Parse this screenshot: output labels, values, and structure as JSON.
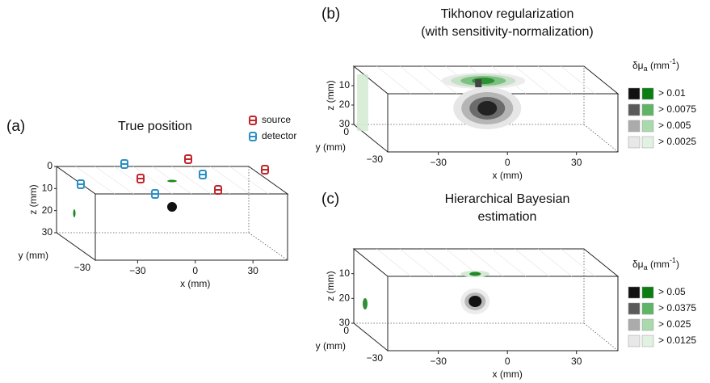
{
  "panels": [
    {
      "label": "(a)",
      "title": [
        "True position"
      ],
      "z_label": "z (mm)",
      "z_ticks": [
        "0",
        "10",
        "20",
        "30"
      ],
      "y_label": "y (mm)",
      "y_ticks": [
        "−30"
      ],
      "x_label": "x (mm)",
      "x_ticks": [
        "−30",
        "0",
        "30"
      ],
      "legend": [
        "source",
        "detector"
      ]
    },
    {
      "label": "(b)",
      "title": [
        "Tikhonov regularization",
        "(with sensitivity-normalization)"
      ],
      "z_label": "z (mm)",
      "z_ticks": [
        "10",
        "20",
        "30"
      ],
      "y_label": "y (mm)",
      "y_ticks": [
        "0",
        "−30"
      ],
      "x_label": "x (mm)",
      "x_ticks": [
        "−30",
        "0",
        "30"
      ],
      "legend_title": {
        "symbol": "δμ",
        "subscript": "a",
        "unit": " (mm",
        "exponent": "-1",
        "close": ")"
      },
      "legend": [
        "> 0.01",
        "> 0.0075",
        "> 0.005",
        "> 0.0025"
      ]
    },
    {
      "label": "(c)",
      "title": [
        "Hierarchical Bayesian",
        "estimation"
      ],
      "z_label": "z (mm)",
      "z_ticks": [
        "10",
        "20",
        "30"
      ],
      "y_label": "y (mm)",
      "y_ticks": [
        "0",
        "−30"
      ],
      "x_label": "x (mm)",
      "x_ticks": [
        "−30",
        "0",
        "30"
      ],
      "legend_title": {
        "symbol": "δμ",
        "subscript": "a",
        "unit": " (mm",
        "exponent": "-1",
        "close": ")"
      },
      "legend": [
        "> 0.05",
        "> 0.0375",
        "> 0.025",
        "> 0.0125"
      ]
    }
  ]
}
